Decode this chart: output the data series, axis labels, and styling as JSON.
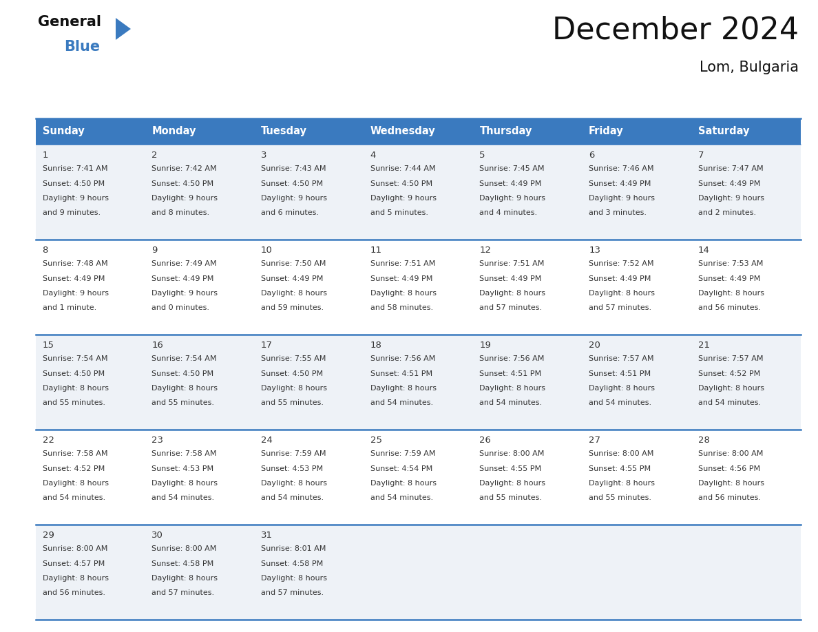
{
  "title": "December 2024",
  "subtitle": "Lom, Bulgaria",
  "header_color": "#3a7abf",
  "header_text_color": "#ffffff",
  "row_bg_odd": "#eef2f7",
  "row_bg_even": "#ffffff",
  "border_color": "#3a7abf",
  "text_color": "#333333",
  "days_of_week": [
    "Sunday",
    "Monday",
    "Tuesday",
    "Wednesday",
    "Thursday",
    "Friday",
    "Saturday"
  ],
  "weeks": [
    [
      {
        "day": 1,
        "sunrise": "7:41 AM",
        "sunset": "4:50 PM",
        "daylight": "9 hours and 9 minutes."
      },
      {
        "day": 2,
        "sunrise": "7:42 AM",
        "sunset": "4:50 PM",
        "daylight": "9 hours and 8 minutes."
      },
      {
        "day": 3,
        "sunrise": "7:43 AM",
        "sunset": "4:50 PM",
        "daylight": "9 hours and 6 minutes."
      },
      {
        "day": 4,
        "sunrise": "7:44 AM",
        "sunset": "4:50 PM",
        "daylight": "9 hours and 5 minutes."
      },
      {
        "day": 5,
        "sunrise": "7:45 AM",
        "sunset": "4:49 PM",
        "daylight": "9 hours and 4 minutes."
      },
      {
        "day": 6,
        "sunrise": "7:46 AM",
        "sunset": "4:49 PM",
        "daylight": "9 hours and 3 minutes."
      },
      {
        "day": 7,
        "sunrise": "7:47 AM",
        "sunset": "4:49 PM",
        "daylight": "9 hours and 2 minutes."
      }
    ],
    [
      {
        "day": 8,
        "sunrise": "7:48 AM",
        "sunset": "4:49 PM",
        "daylight": "9 hours and 1 minute."
      },
      {
        "day": 9,
        "sunrise": "7:49 AM",
        "sunset": "4:49 PM",
        "daylight": "9 hours and 0 minutes."
      },
      {
        "day": 10,
        "sunrise": "7:50 AM",
        "sunset": "4:49 PM",
        "daylight": "8 hours and 59 minutes."
      },
      {
        "day": 11,
        "sunrise": "7:51 AM",
        "sunset": "4:49 PM",
        "daylight": "8 hours and 58 minutes."
      },
      {
        "day": 12,
        "sunrise": "7:51 AM",
        "sunset": "4:49 PM",
        "daylight": "8 hours and 57 minutes."
      },
      {
        "day": 13,
        "sunrise": "7:52 AM",
        "sunset": "4:49 PM",
        "daylight": "8 hours and 57 minutes."
      },
      {
        "day": 14,
        "sunrise": "7:53 AM",
        "sunset": "4:49 PM",
        "daylight": "8 hours and 56 minutes."
      }
    ],
    [
      {
        "day": 15,
        "sunrise": "7:54 AM",
        "sunset": "4:50 PM",
        "daylight": "8 hours and 55 minutes."
      },
      {
        "day": 16,
        "sunrise": "7:54 AM",
        "sunset": "4:50 PM",
        "daylight": "8 hours and 55 minutes."
      },
      {
        "day": 17,
        "sunrise": "7:55 AM",
        "sunset": "4:50 PM",
        "daylight": "8 hours and 55 minutes."
      },
      {
        "day": 18,
        "sunrise": "7:56 AM",
        "sunset": "4:51 PM",
        "daylight": "8 hours and 54 minutes."
      },
      {
        "day": 19,
        "sunrise": "7:56 AM",
        "sunset": "4:51 PM",
        "daylight": "8 hours and 54 minutes."
      },
      {
        "day": 20,
        "sunrise": "7:57 AM",
        "sunset": "4:51 PM",
        "daylight": "8 hours and 54 minutes."
      },
      {
        "day": 21,
        "sunrise": "7:57 AM",
        "sunset": "4:52 PM",
        "daylight": "8 hours and 54 minutes."
      }
    ],
    [
      {
        "day": 22,
        "sunrise": "7:58 AM",
        "sunset": "4:52 PM",
        "daylight": "8 hours and 54 minutes."
      },
      {
        "day": 23,
        "sunrise": "7:58 AM",
        "sunset": "4:53 PM",
        "daylight": "8 hours and 54 minutes."
      },
      {
        "day": 24,
        "sunrise": "7:59 AM",
        "sunset": "4:53 PM",
        "daylight": "8 hours and 54 minutes."
      },
      {
        "day": 25,
        "sunrise": "7:59 AM",
        "sunset": "4:54 PM",
        "daylight": "8 hours and 54 minutes."
      },
      {
        "day": 26,
        "sunrise": "8:00 AM",
        "sunset": "4:55 PM",
        "daylight": "8 hours and 55 minutes."
      },
      {
        "day": 27,
        "sunrise": "8:00 AM",
        "sunset": "4:55 PM",
        "daylight": "8 hours and 55 minutes."
      },
      {
        "day": 28,
        "sunrise": "8:00 AM",
        "sunset": "4:56 PM",
        "daylight": "8 hours and 56 minutes."
      }
    ],
    [
      {
        "day": 29,
        "sunrise": "8:00 AM",
        "sunset": "4:57 PM",
        "daylight": "8 hours and 56 minutes."
      },
      {
        "day": 30,
        "sunrise": "8:00 AM",
        "sunset": "4:58 PM",
        "daylight": "8 hours and 57 minutes."
      },
      {
        "day": 31,
        "sunrise": "8:01 AM",
        "sunset": "4:58 PM",
        "daylight": "8 hours and 57 minutes."
      },
      null,
      null,
      null,
      null
    ]
  ],
  "logo_general_color": "#111111",
  "logo_blue_color": "#3a7abf",
  "logo_triangle_color": "#3a7abf",
  "figsize": [
    11.88,
    9.18
  ],
  "dpi": 100
}
